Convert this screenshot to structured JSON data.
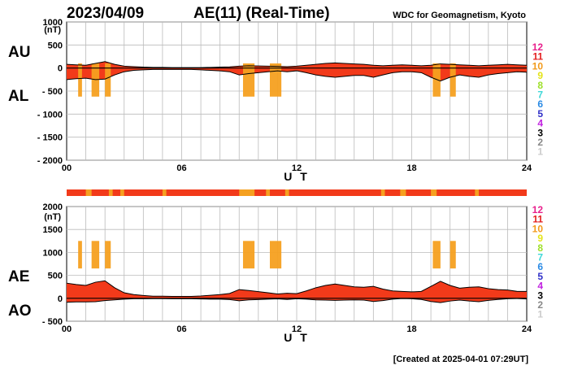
{
  "header": {
    "date": "2023/04/09",
    "title": "AE(11) (Real-Time)",
    "organization": "WDC for Geomagnetism, Kyoto"
  },
  "footer": {
    "created": "[Created at 2025-04-01 07:29UT]"
  },
  "legend": {
    "title_note": "",
    "items": [
      {
        "label": "12",
        "color": "#e8208c"
      },
      {
        "label": "11",
        "color": "#e41e1e"
      },
      {
        "label": "10",
        "color": "#f29a1b"
      },
      {
        "label": "9",
        "color": "#e4e41a"
      },
      {
        "label": "8",
        "color": "#9ee02a"
      },
      {
        "label": "7",
        "color": "#3fd8d8"
      },
      {
        "label": "6",
        "color": "#2a8ae4"
      },
      {
        "label": "5",
        "color": "#3030c8"
      },
      {
        "label": "4",
        "color": "#c020e0"
      },
      {
        "label": "3",
        "color": "#000000"
      },
      {
        "label": "2",
        "color": "#888888"
      },
      {
        "label": "1",
        "color": "#cccccc"
      }
    ]
  },
  "colors": {
    "stations_11": "#f23a1a",
    "stations_10": "#f5a020",
    "grid": "#bbbbbb"
  },
  "chart_data": [
    {
      "type": "area",
      "series": [
        {
          "name": "AU"
        },
        {
          "name": "AL"
        }
      ],
      "ylabel_unit": "(nT)",
      "ylim": [
        -2000,
        1000
      ],
      "yticks": [
        1000,
        500,
        0,
        -500,
        -1000,
        -1500,
        -2000
      ],
      "ytick_labels": [
        "1000",
        "500",
        "0",
        "- 500",
        "- 1000",
        "- 1500",
        "- 2000"
      ],
      "xlim": [
        0,
        24
      ],
      "xticks": [
        0,
        6,
        12,
        18,
        24
      ],
      "xtick_labels": [
        "00",
        "06",
        "12",
        "18",
        "24"
      ],
      "xlabel": "U T",
      "grid": true,
      "x": [
        0,
        0.5,
        1,
        1.5,
        2,
        2.5,
        3,
        3.5,
        4,
        4.5,
        5,
        5.5,
        6,
        6.5,
        7,
        7.5,
        8,
        8.5,
        9,
        9.5,
        10,
        10.5,
        11,
        11.5,
        12,
        12.5,
        13,
        13.5,
        14,
        14.5,
        15,
        15.5,
        16,
        16.5,
        17,
        17.5,
        18,
        18.5,
        19,
        19.5,
        20,
        20.5,
        21,
        21.5,
        22,
        22.5,
        23,
        23.5,
        24
      ],
      "au": [
        80,
        70,
        60,
        100,
        140,
        80,
        40,
        30,
        20,
        15,
        15,
        10,
        10,
        10,
        10,
        15,
        20,
        25,
        40,
        50,
        45,
        40,
        35,
        30,
        40,
        60,
        80,
        100,
        110,
        100,
        90,
        80,
        60,
        50,
        60,
        70,
        60,
        50,
        60,
        90,
        80,
        70,
        60,
        50,
        60,
        70,
        80,
        70,
        60
      ],
      "al": [
        -250,
        -230,
        -220,
        -250,
        -240,
        -150,
        -80,
        -50,
        -40,
        -30,
        -30,
        -30,
        -30,
        -30,
        -40,
        -50,
        -60,
        -80,
        -150,
        -120,
        -100,
        -80,
        -60,
        -80,
        -60,
        -100,
        -150,
        -180,
        -200,
        -180,
        -160,
        -160,
        -200,
        -150,
        -100,
        -80,
        -80,
        -100,
        -200,
        -280,
        -200,
        -150,
        -180,
        -200,
        -150,
        -120,
        -100,
        -80,
        -90
      ]
    },
    {
      "type": "area",
      "series": [
        {
          "name": "AE"
        },
        {
          "name": "AO"
        }
      ],
      "ylabel_unit": "(nT)",
      "ylim": [
        -500,
        2000
      ],
      "yticks": [
        2000,
        1500,
        1000,
        500,
        0,
        -500
      ],
      "ytick_labels": [
        "2000",
        "1500",
        "1000",
        "500",
        "0",
        "- 500"
      ],
      "xlim": [
        0,
        24
      ],
      "xticks": [
        0,
        6,
        12,
        18,
        24
      ],
      "xtick_labels": [
        "00",
        "06",
        "12",
        "18",
        "24"
      ],
      "xlabel": "U T",
      "grid": true,
      "x": [
        0,
        0.5,
        1,
        1.5,
        2,
        2.5,
        3,
        3.5,
        4,
        4.5,
        5,
        5.5,
        6,
        6.5,
        7,
        7.5,
        8,
        8.5,
        9,
        9.5,
        10,
        10.5,
        11,
        11.5,
        12,
        12.5,
        13,
        13.5,
        14,
        14.5,
        15,
        15.5,
        16,
        16.5,
        17,
        17.5,
        18,
        18.5,
        19,
        19.5,
        20,
        20.5,
        21,
        21.5,
        22,
        22.5,
        23,
        23.5,
        24
      ],
      "ae": [
        330,
        300,
        280,
        350,
        380,
        230,
        120,
        80,
        60,
        45,
        45,
        40,
        40,
        40,
        50,
        65,
        80,
        105,
        190,
        170,
        145,
        120,
        95,
        110,
        100,
        160,
        230,
        280,
        310,
        280,
        250,
        240,
        260,
        200,
        160,
        150,
        140,
        150,
        260,
        370,
        280,
        220,
        240,
        250,
        210,
        190,
        180,
        150,
        150
      ],
      "ao": [
        -85,
        -80,
        -80,
        -75,
        -50,
        -35,
        -20,
        -10,
        -10,
        -8,
        -8,
        -10,
        -10,
        -10,
        -15,
        -18,
        -20,
        -28,
        -55,
        -35,
        -28,
        -20,
        -13,
        -25,
        -10,
        -20,
        -35,
        -40,
        -45,
        -40,
        -35,
        -40,
        -70,
        -50,
        -20,
        -5,
        -10,
        -25,
        -70,
        -95,
        -60,
        -40,
        -60,
        -75,
        -45,
        -25,
        -10,
        -5,
        -15
      ]
    }
  ]
}
